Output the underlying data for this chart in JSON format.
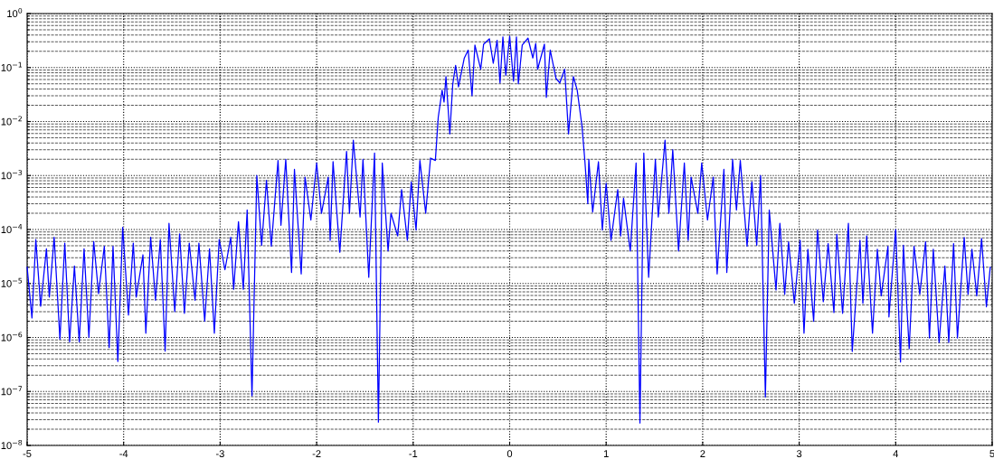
{
  "chart_data": {
    "type": "line",
    "log": "y",
    "grid": true,
    "marker": "none",
    "line_style": "solid",
    "xlim": [
      -5,
      5
    ],
    "xticks": [
      -5,
      -4,
      -3,
      -2,
      -1,
      0,
      1,
      2,
      3,
      4,
      5
    ],
    "ylim": [
      1e-08,
      1
    ],
    "yticks": [
      {
        "value": 1e-08,
        "label": "10$^{−8}$"
      },
      {
        "value": 1e-07,
        "label": "10$^{−7}$"
      },
      {
        "value": 1e-06,
        "label": "10$^{−6}$"
      },
      {
        "value": 1e-05,
        "label": "10$^{−5}$"
      },
      {
        "value": 0.0001,
        "label": "10$^{−4}$"
      },
      {
        "value": 0.001,
        "label": "10$^{−3}$"
      },
      {
        "value": 0.01,
        "label": "10$^{−2}$"
      },
      {
        "value": 0.1,
        "label": "10$^{−1}$"
      },
      {
        "value": 1,
        "label": "10$^{0}$"
      }
    ],
    "series": [
      {
        "color": "#0000ff",
        "x": [
          -5.0,
          -4.95,
          -4.91,
          -4.86,
          -4.8,
          -4.77,
          -4.72,
          -4.66,
          -4.61,
          -4.56,
          -4.51,
          -4.46,
          -4.41,
          -4.36,
          -4.31,
          -4.26,
          -4.2,
          -4.15,
          -4.11,
          -4.06,
          -4.01,
          -3.95,
          -3.9,
          -3.87,
          -3.8,
          -3.77,
          -3.72,
          -3.67,
          -3.62,
          -3.57,
          -3.53,
          -3.47,
          -3.42,
          -3.37,
          -3.32,
          -3.26,
          -3.22,
          -3.16,
          -3.11,
          -3.06,
          -3.01,
          -2.95,
          -2.89,
          -2.86,
          -2.81,
          -2.76,
          -2.72,
          -2.67,
          -2.62,
          -2.57,
          -2.52,
          -2.47,
          -2.4,
          -2.37,
          -2.32,
          -2.26,
          -2.23,
          -2.16,
          -2.12,
          -2.06,
          -2.0,
          -1.95,
          -1.88,
          -1.86,
          -1.83,
          -1.76,
          -1.69,
          -1.66,
          -1.62,
          -1.55,
          -1.52,
          -1.46,
          -1.4,
          -1.36,
          -1.32,
          -1.26,
          -1.23,
          -1.16,
          -1.12,
          -1.06,
          -1.02,
          -0.97,
          -0.93,
          -0.87,
          -0.82,
          -0.77,
          -0.74,
          -0.7,
          -0.68,
          -0.66,
          -0.62,
          -0.59,
          -0.56,
          -0.53,
          -0.47,
          -0.43,
          -0.39,
          -0.36,
          -0.3,
          -0.27,
          -0.21,
          -0.17,
          -0.13,
          -0.1,
          -0.07,
          -0.04,
          0.0,
          0.04,
          0.07,
          0.09,
          0.13,
          0.19,
          0.24,
          0.27,
          0.29,
          0.36,
          0.38,
          0.42,
          0.48,
          0.52,
          0.57,
          0.61,
          0.66,
          0.7,
          0.75,
          0.78,
          0.81,
          0.82,
          0.86,
          0.92,
          0.96,
          1.0,
          1.05,
          1.12,
          1.15,
          1.18,
          1.25,
          1.31,
          1.35,
          1.39,
          1.44,
          1.51,
          1.54,
          1.61,
          1.65,
          1.69,
          1.75,
          1.81,
          1.85,
          1.88,
          1.95,
          1.99,
          2.05,
          2.11,
          2.15,
          2.22,
          2.25,
          2.31,
          2.35,
          2.39,
          2.46,
          2.51,
          2.56,
          2.6,
          2.65,
          2.69,
          2.76,
          2.8,
          2.85,
          2.89,
          2.95,
          3.01,
          3.05,
          3.09,
          3.15,
          3.19,
          3.25,
          3.3,
          3.36,
          3.39,
          3.45,
          3.51,
          3.55,
          3.63,
          3.66,
          3.7,
          3.76,
          3.81,
          3.85,
          3.92,
          3.93,
          4.0,
          4.05,
          4.08,
          4.14,
          4.19,
          4.25,
          4.31,
          4.35,
          4.39,
          4.45,
          4.51,
          4.55,
          4.6,
          4.64,
          4.71,
          4.75,
          4.79,
          4.84,
          4.89,
          4.94,
          4.98
        ],
        "values": [
          2e-05,
          2.3e-06,
          6.5e-05,
          3.8e-06,
          4.4e-05,
          5.6e-06,
          7.2e-05,
          9.3e-07,
          5.6e-05,
          8.3e-07,
          2.1e-05,
          8.3e-07,
          4.4e-05,
          1e-06,
          6e-05,
          6.5e-06,
          4.9e-05,
          6.5e-07,
          4.9e-05,
          3.6e-07,
          0.00011,
          2.6e-06,
          5.6e-05,
          5.6e-06,
          3.4e-05,
          1.2e-06,
          7.2e-05,
          4.9e-06,
          6.5e-05,
          5.6e-07,
          0.00013,
          3e-06,
          8.3e-05,
          2.8e-06,
          5.6e-05,
          4.9e-06,
          5.6e-05,
          2e-06,
          4.4e-05,
          1.2e-06,
          6.5e-05,
          1.8e-05,
          7.2e-05,
          7.8e-06,
          0.00014,
          7.8e-06,
          0.00023,
          8.3e-08,
          0.001,
          5.1e-05,
          0.00081,
          4.9e-05,
          0.0019,
          0.00012,
          0.002,
          1.6e-05,
          0.0013,
          1.5e-05,
          0.00093,
          0.00015,
          0.0017,
          0.0002,
          0.00093,
          6.3e-05,
          0.0018,
          3.8e-05,
          0.0028,
          0.0002,
          0.0045,
          0.00017,
          0.002,
          1.3e-05,
          0.0026,
          2.7e-08,
          0.0017,
          4e-05,
          0.0002,
          7.6e-05,
          0.00055,
          6.3e-05,
          0.00076,
          9.8e-05,
          0.0019,
          0.0002,
          0.0021,
          0.0019,
          0.012,
          0.038,
          0.023,
          0.068,
          0.0059,
          0.049,
          0.11,
          0.044,
          0.15,
          0.21,
          0.03,
          0.26,
          0.093,
          0.27,
          0.34,
          0.12,
          0.32,
          0.052,
          0.37,
          0.072,
          0.38,
          0.056,
          0.37,
          0.05,
          0.26,
          0.35,
          0.15,
          0.28,
          0.093,
          0.27,
          0.028,
          0.21,
          0.063,
          0.052,
          0.093,
          0.0059,
          0.068,
          0.038,
          0.0081,
          0.0018,
          0.0003,
          0.002,
          0.00021,
          0.0018,
          9.8e-05,
          0.00072,
          6.3e-05,
          0.00055,
          7.6e-05,
          0.00038,
          4e-05,
          0.0017,
          2.6e-08,
          0.0026,
          1.3e-05,
          0.002,
          0.00017,
          0.0045,
          0.0002,
          0.003,
          4e-05,
          0.0017,
          6.3e-05,
          0.00093,
          0.0002,
          0.0017,
          0.00015,
          0.00093,
          1.5e-05,
          0.0013,
          1.6e-05,
          0.002,
          0.00023,
          0.0019,
          4.9e-05,
          0.00076,
          5.1e-05,
          0.001,
          7.9e-08,
          0.00023,
          7.6e-06,
          0.00013,
          6.3e-06,
          5.9e-05,
          4.3e-06,
          6.3e-05,
          1.2e-06,
          4.3e-05,
          2e-06,
          9.8e-05,
          4.6e-06,
          5.5e-05,
          2.9e-06,
          8.1e-05,
          2.8e-06,
          0.00013,
          5.5e-07,
          6.3e-05,
          4.3e-06,
          7.6e-05,
          1.2e-06,
          4.3e-05,
          5.9e-06,
          4.9e-05,
          2.4e-06,
          0.0001,
          3.5e-07,
          5.1e-05,
          6.2e-07,
          4.9e-05,
          6.3e-06,
          5.9e-05,
          9.8e-07,
          4.3e-05,
          8.1e-07,
          2.1e-05,
          8.1e-07,
          5.5e-05,
          9.8e-07,
          7.1e-05,
          6.3e-06,
          4.3e-05,
          5.9e-06,
          6.8e-05,
          3.7e-06,
          2e-05
        ]
      }
    ]
  }
}
